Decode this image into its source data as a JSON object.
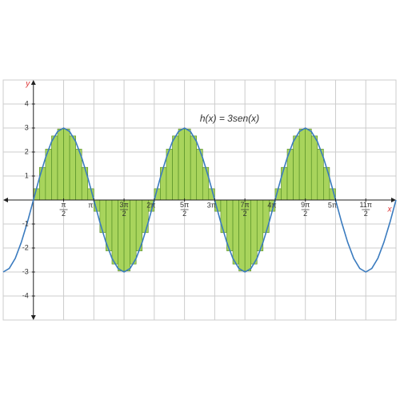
{
  "chart_data": {
    "type": "function-riemann",
    "title": "h(x) = 3sen(x)",
    "xlabel": "x",
    "ylabel": "y",
    "curve": {
      "color": "#3a7bbf",
      "x": [
        -0.5,
        -0.4,
        -0.3,
        -0.2,
        -0.1,
        0,
        0.1,
        0.2,
        0.3,
        0.4,
        0.5,
        0.6,
        0.7,
        0.8,
        0.9,
        1,
        1.1,
        1.2,
        1.3,
        1.4,
        1.5,
        1.6,
        1.7,
        1.8,
        1.9,
        2,
        2.1,
        2.2,
        2.3,
        2.4,
        2.5,
        2.6,
        2.7,
        2.8,
        2.9,
        3,
        3.1,
        3.2,
        3.3,
        3.4,
        3.5,
        3.6,
        3.7,
        3.8,
        3.9,
        4,
        4.1,
        4.2,
        4.3,
        4.4,
        4.5,
        4.6,
        4.7,
        4.8,
        4.9,
        5,
        5.1,
        5.2,
        5.3,
        5.4,
        5.5,
        5.6,
        5.7,
        5.8,
        5.9,
        6
      ],
      "y": [
        -3,
        -2.85,
        -2.43,
        -1.76,
        -0.93,
        0,
        0.93,
        1.76,
        2.43,
        2.85,
        3,
        2.85,
        2.43,
        1.76,
        0.93,
        0,
        -0.93,
        -1.76,
        -2.43,
        -2.85,
        -3,
        -2.85,
        -2.43,
        -1.76,
        -0.93,
        0,
        0.93,
        1.76,
        2.43,
        2.85,
        3,
        2.85,
        2.43,
        1.76,
        0.93,
        0,
        -0.93,
        -1.76,
        -2.43,
        -2.85,
        -3,
        -2.85,
        -2.43,
        -1.76,
        -0.93,
        0,
        0.93,
        1.76,
        2.43,
        2.85,
        3,
        2.85,
        2.43,
        1.76,
        0.93,
        0,
        -0.93,
        -1.76,
        -2.43,
        -2.85,
        -3,
        -2.85,
        -2.43,
        -1.76,
        -0.93,
        0
      ]
    },
    "bars": {
      "color": "#a8d45c",
      "edge_color": "#4f8a22",
      "bins": [
        0,
        0.1,
        0.2,
        0.3,
        0.4,
        0.5,
        0.6,
        0.7,
        0.8,
        0.9,
        1,
        1.1,
        1.2,
        1.3,
        1.4,
        1.5,
        1.6,
        1.7,
        1.8,
        1.9,
        2,
        2.1,
        2.2,
        2.3,
        2.4,
        2.5,
        2.6,
        2.7,
        2.8,
        2.9,
        3,
        3.1,
        3.2,
        3.3,
        3.4,
        3.5,
        3.6,
        3.7,
        3.8,
        3.9,
        4,
        4.1,
        4.2,
        4.3,
        4.4,
        4.5,
        4.6,
        4.7,
        4.8,
        4.9,
        5
      ],
      "values": [
        0.47,
        1.36,
        2.12,
        2.67,
        2.96,
        2.96,
        2.67,
        2.12,
        1.36,
        0.47,
        -0.47,
        -1.36,
        -2.12,
        -2.67,
        -2.96,
        -2.96,
        -2.67,
        -2.12,
        -1.36,
        -0.47,
        0.47,
        1.36,
        2.12,
        2.67,
        2.96,
        2.96,
        2.67,
        2.12,
        1.36,
        0.47,
        -0.47,
        -1.36,
        -2.12,
        -2.67,
        -2.96,
        -2.96,
        -2.67,
        -2.12,
        -1.36,
        -0.47,
        0.47,
        1.36,
        2.12,
        2.67,
        2.96,
        2.96,
        2.67,
        2.12,
        1.36,
        0.47
      ]
    },
    "xlim": [
      -0.5,
      6
    ],
    "ylim": [
      -5,
      5
    ],
    "xticks": [
      {
        "value": 0.5,
        "label": "π/2"
      },
      {
        "value": 1,
        "label": "π"
      },
      {
        "value": 1.5,
        "label": "3π/2"
      },
      {
        "value": 2,
        "label": "2π"
      },
      {
        "value": 2.5,
        "label": "5π/2"
      },
      {
        "value": 3,
        "label": "3π"
      },
      {
        "value": 3.5,
        "label": "7π/2"
      },
      {
        "value": 4,
        "label": "4π"
      },
      {
        "value": 4.5,
        "label": "9π/2"
      },
      {
        "value": 5,
        "label": "5π"
      },
      {
        "value": 5.5,
        "label": "11π/2"
      }
    ],
    "yticks": [
      -4,
      -3,
      -2,
      -1,
      1,
      2,
      3,
      4
    ],
    "grid": true
  }
}
